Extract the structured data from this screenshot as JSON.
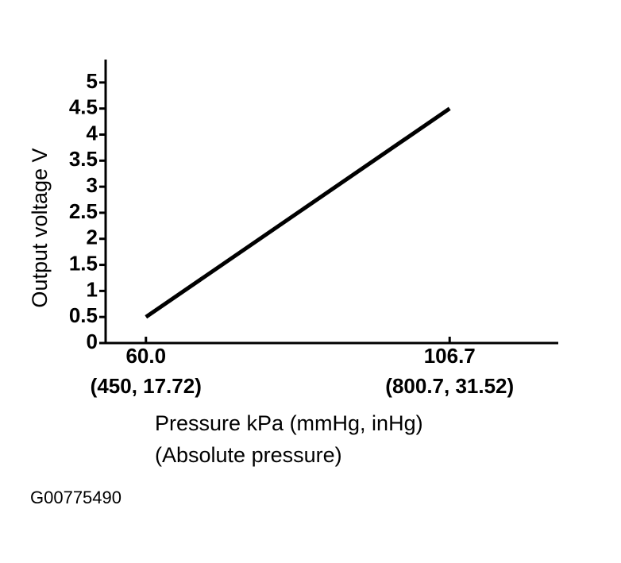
{
  "chart_data": {
    "type": "line",
    "y_label": "Output voltage V",
    "x_label": [
      "Pressure kPa (mmHg, inHg)",
      "(Absolute pressure)"
    ],
    "footer": "G00775490",
    "x": [
      60,
      106.7
    ],
    "series": [
      {
        "color": "#000000",
        "values": [
          0.5,
          4.5
        ]
      }
    ],
    "xlim": [
      53.8,
      123.4
    ],
    "xticks": [
      {
        "value": 60,
        "label": "60.0"
      },
      106.7
    ],
    "xtick_sublabels": [
      "(450, 17.72)",
      "(800.7, 31.52)"
    ],
    "ylim": [
      0,
      5.44
    ],
    "yticks": [
      0,
      0.5,
      1,
      1.5,
      2,
      2.5,
      3,
      3.5,
      4,
      4.5,
      5
    ],
    "grid": false
  }
}
